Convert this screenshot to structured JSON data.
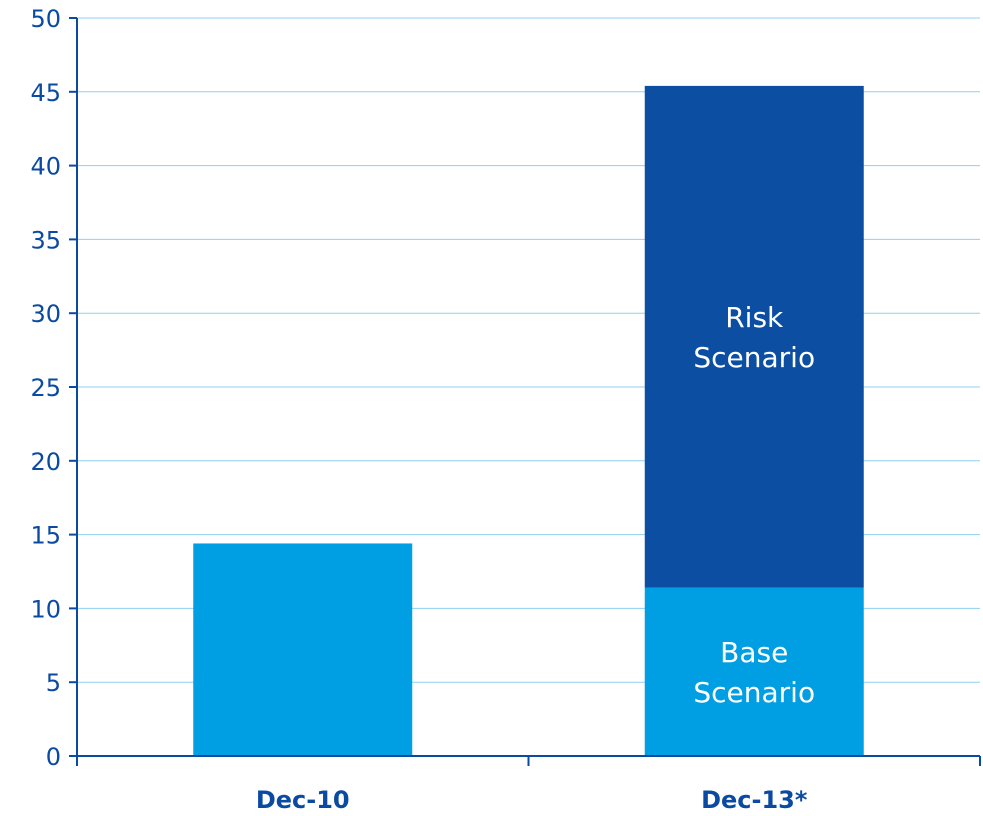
{
  "chart_data": {
    "type": "bar",
    "stacked": true,
    "categories": [
      "Dec-10",
      "Dec-13*"
    ],
    "series": [
      {
        "values": [
          14.4,
          11.4
        ],
        "color": "#009fe3"
      },
      {
        "values": [
          0,
          34.0
        ],
        "color": "#0b4ea2"
      }
    ],
    "segment_labels": [
      {
        "category": "Dec-13*",
        "series": 0,
        "lines": [
          "Base",
          "Scenario"
        ]
      },
      {
        "category": "Dec-13*",
        "series": 1,
        "lines": [
          "Risk",
          "Scenario"
        ]
      }
    ],
    "y_ticks": [
      0,
      5,
      10,
      15,
      20,
      25,
      30,
      35,
      40,
      45,
      50
    ],
    "ylim": [
      0,
      50
    ],
    "grid": true,
    "gridline_color": "#8fd0f0",
    "axis_color": "#0b4aa2",
    "title": "",
    "xlabel": "",
    "ylabel": ""
  }
}
